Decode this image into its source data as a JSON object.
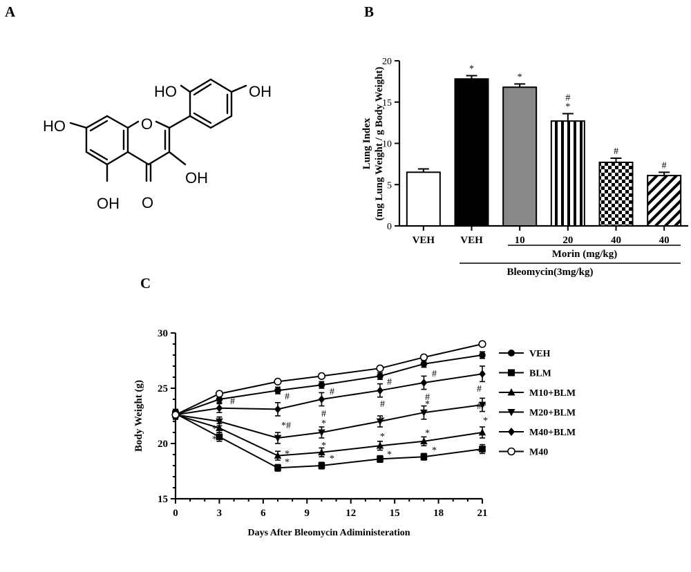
{
  "panels": {
    "a": {
      "letter": "A",
      "substituents": [
        "HO",
        "HO",
        "OH",
        "OH",
        "OH",
        "O",
        "O"
      ]
    },
    "b": {
      "letter": "B",
      "morin_label": "Morin (mg/kg)",
      "bleomycin_label": "Bleomycin(3mg/kg)"
    },
    "c": {
      "letter": "C"
    }
  },
  "chart_data": [
    {
      "panel": "B",
      "type": "bar",
      "ylabel_line1": "Lung Index",
      "ylabel_line2": "(mg Lung Weight / g Body Weight)",
      "ylim": [
        0,
        20
      ],
      "yticks": [
        0,
        5,
        10,
        15,
        20
      ],
      "categories": [
        "VEH",
        "VEH",
        "10",
        "20",
        "40",
        "40"
      ],
      "values": [
        6.5,
        17.8,
        16.8,
        12.7,
        7.7,
        6.1
      ],
      "errors": [
        0.4,
        0.4,
        0.4,
        0.9,
        0.5,
        0.4
      ],
      "annotations": [
        "",
        "*",
        "*",
        "#\n*",
        "#",
        "#"
      ],
      "fills": [
        "white",
        "black",
        "gray",
        "vertical-stripes",
        "checkerboard",
        "diagonal-stripes"
      ]
    },
    {
      "panel": "C",
      "type": "line",
      "xlabel": "Days After Bleomycin Adiministeration",
      "ylabel": "Body Weight (g)",
      "xlim": [
        0,
        21
      ],
      "ylim": [
        15,
        30
      ],
      "xticks": [
        0,
        3,
        6,
        9,
        12,
        15,
        18,
        21
      ],
      "yticks": [
        15,
        20,
        25,
        30
      ],
      "legend_position": "right",
      "series": [
        {
          "name": "VEH",
          "marker": "circle-filled",
          "x": [
            0,
            3,
            7,
            10,
            14,
            17,
            21
          ],
          "y": [
            22.6,
            24.0,
            24.8,
            25.3,
            26.1,
            27.2,
            28.0
          ],
          "err": [
            0.4,
            0.3,
            0.3,
            0.3,
            0.3,
            0.3,
            0.3
          ]
        },
        {
          "name": "BLM",
          "marker": "square-filled",
          "x": [
            0,
            3,
            7,
            10,
            14,
            17,
            21
          ],
          "y": [
            22.7,
            20.6,
            17.8,
            18.0,
            18.6,
            18.8,
            19.5
          ],
          "err": [
            0.4,
            0.4,
            0.3,
            0.3,
            0.3,
            0.3,
            0.4
          ]
        },
        {
          "name": "M10+BLM",
          "marker": "triangle-up-filled",
          "x": [
            0,
            3,
            7,
            10,
            14,
            17,
            21
          ],
          "y": [
            22.6,
            21.4,
            18.9,
            19.2,
            19.8,
            20.2,
            21.0
          ],
          "err": [
            0.4,
            0.4,
            0.4,
            0.4,
            0.4,
            0.4,
            0.5
          ]
        },
        {
          "name": "M20+BLM",
          "marker": "triangle-down-filled",
          "x": [
            0,
            3,
            7,
            10,
            14,
            17,
            21
          ],
          "y": [
            22.6,
            22.0,
            20.5,
            21.0,
            22.0,
            22.8,
            23.5
          ],
          "err": [
            0.4,
            0.4,
            0.5,
            0.5,
            0.5,
            0.6,
            0.6
          ]
        },
        {
          "name": "M40+BLM",
          "marker": "diamond-filled",
          "x": [
            0,
            3,
            7,
            10,
            14,
            17,
            21
          ],
          "y": [
            22.6,
            23.2,
            23.1,
            24.0,
            24.8,
            25.5,
            26.3
          ],
          "err": [
            0.4,
            0.4,
            0.6,
            0.6,
            0.6,
            0.6,
            0.7
          ]
        },
        {
          "name": "M40",
          "marker": "circle-open",
          "x": [
            0,
            3,
            7,
            10,
            14,
            17,
            21
          ],
          "y": [
            22.6,
            24.5,
            25.6,
            26.1,
            26.8,
            27.8,
            29.0
          ],
          "err": [
            0.3,
            0.2,
            0.2,
            0.2,
            0.2,
            0.2,
            0.2
          ]
        }
      ],
      "annotations": [
        {
          "x": 3,
          "text": "#"
        },
        {
          "x": 3,
          "text": "*"
        },
        {
          "x": 3,
          "text": "*"
        },
        {
          "x": 7,
          "text": "#"
        },
        {
          "x": 7,
          "text": "*#"
        },
        {
          "x": 7,
          "text": "*"
        },
        {
          "x": 7,
          "text": "*"
        },
        {
          "x": 10,
          "text": "#"
        },
        {
          "x": 10,
          "text": "#"
        },
        {
          "x": 10,
          "text": "*"
        },
        {
          "x": 10,
          "text": "*"
        },
        {
          "x": 10,
          "text": "*"
        },
        {
          "x": 14,
          "text": "#"
        },
        {
          "x": 14,
          "text": "#"
        },
        {
          "x": 14,
          "text": "*"
        },
        {
          "x": 14,
          "text": "*"
        },
        {
          "x": 14,
          "text": "*"
        },
        {
          "x": 17,
          "text": "#"
        },
        {
          "x": 17,
          "text": "#"
        },
        {
          "x": 17,
          "text": "*"
        },
        {
          "x": 17,
          "text": "*"
        },
        {
          "x": 17,
          "text": "*"
        },
        {
          "x": 21,
          "text": "#"
        },
        {
          "x": 21,
          "text": "#*"
        },
        {
          "x": 21,
          "text": "*"
        },
        {
          "x": 21,
          "text": "*"
        }
      ]
    }
  ]
}
